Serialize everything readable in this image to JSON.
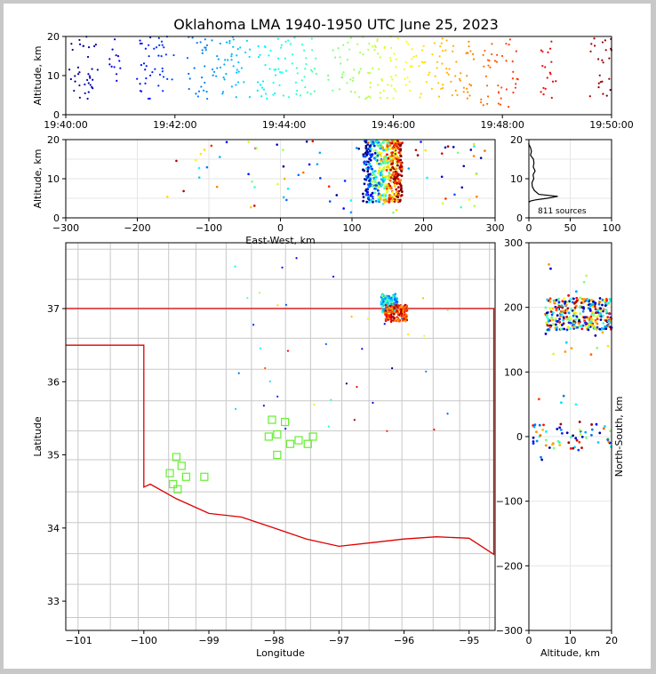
{
  "title": "Oklahoma LMA 1940-1950 UTC June 25, 2023",
  "colors": {
    "state_line": "#dd0000",
    "county": "#c8c8c8",
    "frame": "#000000"
  },
  "chart_data": [
    {
      "panel": "time-altitude",
      "type": "scatter",
      "xlabel": "",
      "ylabel": "Altitude, km",
      "xlim": [
        "19:40:00",
        "19:50:00"
      ],
      "ylim": [
        0,
        20
      ],
      "xticks": [
        "19:40:00",
        "19:42:00",
        "19:44:00",
        "19:46:00",
        "19:48:00",
        "19:50:00"
      ],
      "yticks": [
        "0",
        "10",
        "20"
      ],
      "colormap": "jet (by time)",
      "point_bands_minutes": [
        {
          "t0": 0.0,
          "t1": 0.6,
          "zmin": 4,
          "zmax": 20
        },
        {
          "t0": 0.8,
          "t1": 1.0,
          "zmin": 4,
          "zmax": 20
        },
        {
          "t0": 1.3,
          "t1": 2.0,
          "zmin": 4,
          "zmax": 20
        },
        {
          "t0": 2.2,
          "t1": 3.4,
          "zmin": 4,
          "zmax": 20
        },
        {
          "t0": 3.5,
          "t1": 4.6,
          "zmin": 4,
          "zmax": 20
        },
        {
          "t0": 4.8,
          "t1": 6.1,
          "zmin": 4,
          "zmax": 20
        },
        {
          "t0": 6.2,
          "t1": 7.5,
          "zmin": 4,
          "zmax": 20
        },
        {
          "t0": 7.6,
          "t1": 8.3,
          "zmin": 2,
          "zmax": 20
        },
        {
          "t0": 8.7,
          "t1": 9.0,
          "zmin": 4,
          "zmax": 20
        },
        {
          "t0": 9.6,
          "t1": 10.0,
          "zmin": 4,
          "zmax": 20
        }
      ]
    },
    {
      "panel": "east-west-altitude",
      "type": "scatter",
      "xlabel": "East-West, km",
      "ylabel": "Altitude, km",
      "xlim": [
        -300,
        300
      ],
      "ylim": [
        0,
        20
      ],
      "xticks": [
        "−300",
        "−200",
        "−100",
        "0",
        "100",
        "200",
        "300"
      ],
      "yticks": [
        "0",
        "10",
        "20"
      ],
      "main_cluster": {
        "xmin": 115,
        "xmax": 170,
        "zmin": 4,
        "zmax": 20
      }
    },
    {
      "panel": "altitude-histogram",
      "type": "line",
      "xlabel": "",
      "ylabel": "",
      "xlim": [
        0,
        100
      ],
      "ylim": [
        0,
        20
      ],
      "xticks": [
        "0",
        "50",
        "100"
      ],
      "yticks": [
        "0",
        "10",
        "20"
      ],
      "annotation": "811 sources",
      "x": [
        0,
        2,
        8,
        22,
        35,
        12,
        6,
        4,
        5,
        6,
        5,
        7,
        6,
        5,
        4,
        3,
        2,
        1,
        0
      ],
      "y": [
        4,
        4.3,
        4.6,
        5,
        5.5,
        6,
        7,
        8,
        9,
        10,
        11,
        12,
        13,
        14,
        15,
        16,
        17,
        18,
        19
      ]
    },
    {
      "panel": "plan-view",
      "type": "scatter",
      "xlabel": "Longitude",
      "ylabel": "Latitude",
      "xlim": [
        -101.2,
        -94.6
      ],
      "ylim": [
        32.6,
        37.9
      ],
      "xticks": [
        "−101",
        "−100",
        "−99",
        "−98",
        "−97",
        "−96",
        "−95"
      ],
      "yticks": [
        "33",
        "34",
        "35",
        "36",
        "37"
      ],
      "stations": [
        {
          "lon": -99.6,
          "lat": 34.75
        },
        {
          "lon": -99.5,
          "lat": 34.97
        },
        {
          "lon": -99.42,
          "lat": 34.85
        },
        {
          "lon": -99.35,
          "lat": 34.7
        },
        {
          "lon": -99.55,
          "lat": 34.6
        },
        {
          "lon": -99.48,
          "lat": 34.53
        },
        {
          "lon": -99.07,
          "lat": 34.7
        },
        {
          "lon": -98.03,
          "lat": 35.48
        },
        {
          "lon": -97.83,
          "lat": 35.45
        },
        {
          "lon": -97.95,
          "lat": 35.28
        },
        {
          "lon": -98.08,
          "lat": 35.25
        },
        {
          "lon": -97.75,
          "lat": 35.15
        },
        {
          "lon": -97.62,
          "lat": 35.2
        },
        {
          "lon": -97.48,
          "lat": 35.15
        },
        {
          "lon": -97.4,
          "lat": 35.25
        },
        {
          "lon": -97.95,
          "lat": 35.0
        }
      ],
      "source_clusters": [
        {
          "lon0": -96.35,
          "lon1": -96.1,
          "lat0": 36.95,
          "lat1": 37.2
        },
        {
          "lon0": -96.3,
          "lon1": -95.95,
          "lat0": 36.82,
          "lat1": 37.05
        }
      ]
    },
    {
      "panel": "altitude-north-south",
      "type": "scatter",
      "xlabel": "Altitude, km",
      "ylabel": "North-South, km",
      "xlim": [
        0,
        20
      ],
      "ylim": [
        -300,
        300
      ],
      "xticks": [
        "0",
        "10",
        "20"
      ],
      "yticks": [
        "−300",
        "−200",
        "−100",
        "0",
        "100",
        "200",
        "300"
      ],
      "clusters": [
        {
          "ymin": 165,
          "ymax": 215,
          "zmin": 4,
          "zmax": 20
        },
        {
          "ymin": -20,
          "ymax": 20,
          "zmin": 1,
          "zmax": 20
        }
      ]
    }
  ]
}
